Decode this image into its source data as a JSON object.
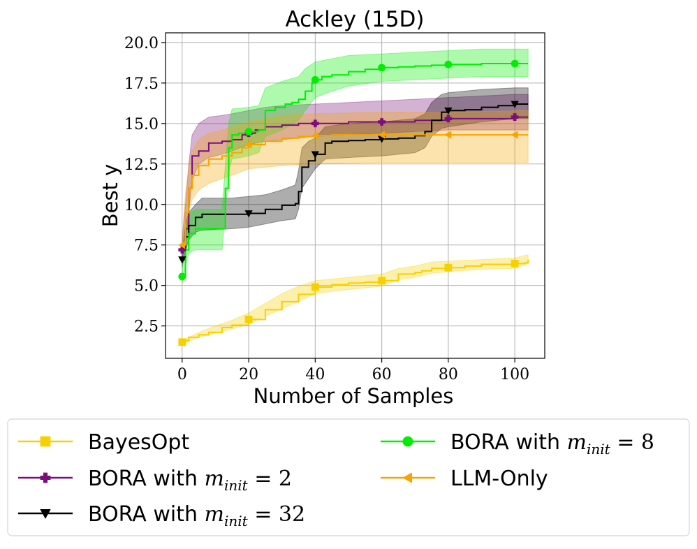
{
  "chart_data": {
    "type": "line",
    "title": "Ackley (15D)",
    "xlabel": "Number of Samples",
    "ylabel": "Best y",
    "xlim": [
      -5,
      109
    ],
    "ylim": [
      0.5,
      20.6
    ],
    "xticks": [
      0,
      20,
      40,
      60,
      80,
      100
    ],
    "yticks": [
      2.5,
      5.0,
      7.5,
      10.0,
      12.5,
      15.0,
      17.5,
      20.0
    ],
    "xtick_labels": [
      "0",
      "20",
      "40",
      "60",
      "80",
      "100"
    ],
    "ytick_labels": [
      "2.5",
      "5.0",
      "7.5",
      "10.0",
      "12.5",
      "15.0",
      "17.5",
      "20.0"
    ],
    "grid": true,
    "legend_position": "bottom",
    "series": [
      {
        "name": "BayesOpt",
        "legend_main": "BayesOpt",
        "legend_math": "",
        "color": "#f7d000",
        "marker": "square",
        "mean": [
          [
            0,
            1.5
          ],
          [
            1,
            1.6
          ],
          [
            2,
            1.8
          ],
          [
            5,
            1.95
          ],
          [
            8,
            2.1
          ],
          [
            12,
            2.4
          ],
          [
            15,
            2.55
          ],
          [
            20,
            2.9
          ],
          [
            25,
            3.5
          ],
          [
            30,
            4.0
          ],
          [
            35,
            4.45
          ],
          [
            40,
            4.9
          ],
          [
            45,
            5.05
          ],
          [
            50,
            5.15
          ],
          [
            55,
            5.2
          ],
          [
            60,
            5.3
          ],
          [
            65,
            5.7
          ],
          [
            70,
            5.8
          ],
          [
            72,
            5.9
          ],
          [
            75,
            6.05
          ],
          [
            80,
            6.1
          ],
          [
            85,
            6.2
          ],
          [
            90,
            6.3
          ],
          [
            100,
            6.35
          ],
          [
            103,
            6.4
          ],
          [
            104,
            6.6
          ]
        ],
        "band": [
          [
            0,
            1.35,
            1.6
          ],
          [
            5,
            1.8,
            2.1
          ],
          [
            10,
            2.05,
            2.5
          ],
          [
            15,
            2.3,
            2.85
          ],
          [
            20,
            2.6,
            3.3
          ],
          [
            25,
            3.1,
            3.9
          ],
          [
            30,
            3.55,
            4.5
          ],
          [
            35,
            4.0,
            4.95
          ],
          [
            40,
            4.5,
            5.3
          ],
          [
            50,
            4.75,
            5.5
          ],
          [
            60,
            4.95,
            5.7
          ],
          [
            65,
            5.35,
            6.05
          ],
          [
            70,
            5.5,
            6.2
          ],
          [
            75,
            5.75,
            6.45
          ],
          [
            80,
            5.85,
            6.5
          ],
          [
            90,
            6.0,
            6.6
          ],
          [
            100,
            6.05,
            6.7
          ],
          [
            104,
            6.35,
            6.9
          ]
        ],
        "markers": [
          [
            0,
            1.5
          ],
          [
            20,
            2.9
          ],
          [
            40,
            4.9
          ],
          [
            60,
            5.3
          ],
          [
            80,
            6.1
          ],
          [
            100,
            6.35
          ]
        ]
      },
      {
        "name": "BORA with m_init = 2",
        "legend_main": "BORA with ",
        "legend_math": "m_init = 2",
        "color": "#7a0f7a",
        "marker": "plus",
        "mean": [
          [
            0,
            7.2
          ],
          [
            1,
            8.5
          ],
          [
            2,
            11.0
          ],
          [
            3,
            13.0
          ],
          [
            5,
            13.3
          ],
          [
            8,
            13.8
          ],
          [
            12,
            13.9
          ],
          [
            15,
            14.0
          ],
          [
            18,
            14.3
          ],
          [
            20,
            14.4
          ],
          [
            22,
            14.6
          ],
          [
            25,
            14.8
          ],
          [
            30,
            14.9
          ],
          [
            35,
            15.0
          ],
          [
            40,
            15.0
          ],
          [
            50,
            15.1
          ],
          [
            60,
            15.1
          ],
          [
            70,
            15.2
          ],
          [
            80,
            15.3
          ],
          [
            90,
            15.3
          ],
          [
            100,
            15.4
          ],
          [
            104,
            15.4
          ]
        ],
        "band": [
          [
            0,
            6.6,
            7.8
          ],
          [
            1,
            7.4,
            10.0
          ],
          [
            2,
            9.5,
            12.5
          ],
          [
            3,
            11.5,
            14.3
          ],
          [
            5,
            12.5,
            15.0
          ],
          [
            8,
            12.9,
            15.4
          ],
          [
            12,
            13.1,
            15.5
          ],
          [
            15,
            13.3,
            15.6
          ],
          [
            20,
            13.7,
            15.8
          ],
          [
            25,
            13.9,
            16.0
          ],
          [
            30,
            14.0,
            16.1
          ],
          [
            40,
            14.2,
            16.2
          ],
          [
            50,
            14.3,
            16.3
          ],
          [
            60,
            14.4,
            16.4
          ],
          [
            70,
            14.5,
            16.5
          ],
          [
            80,
            14.6,
            16.6
          ],
          [
            90,
            14.6,
            16.7
          ],
          [
            100,
            14.6,
            16.8
          ],
          [
            104,
            14.6,
            16.8
          ]
        ],
        "markers": [
          [
            0,
            7.2
          ],
          [
            20,
            14.4
          ],
          [
            40,
            15.0
          ],
          [
            60,
            15.1
          ],
          [
            80,
            15.3
          ],
          [
            100,
            15.4
          ]
        ]
      },
      {
        "name": "BORA with m_init = 32",
        "legend_main": "BORA with ",
        "legend_math": "m_init = 32",
        "color": "#000000",
        "marker": "triangle-down",
        "mean": [
          [
            0,
            6.6
          ],
          [
            1,
            8.0
          ],
          [
            2,
            8.7
          ],
          [
            4,
            9.2
          ],
          [
            6,
            9.4
          ],
          [
            10,
            9.4
          ],
          [
            15,
            9.4
          ],
          [
            20,
            9.45
          ],
          [
            25,
            9.7
          ],
          [
            30,
            9.95
          ],
          [
            34,
            10.05
          ],
          [
            35,
            10.8
          ],
          [
            36,
            12.3
          ],
          [
            38,
            12.7
          ],
          [
            40,
            13.1
          ],
          [
            43,
            13.8
          ],
          [
            45,
            13.9
          ],
          [
            50,
            13.95
          ],
          [
            55,
            14.0
          ],
          [
            60,
            14.05
          ],
          [
            65,
            14.1
          ],
          [
            70,
            14.25
          ],
          [
            73,
            14.5
          ],
          [
            75,
            15.2
          ],
          [
            78,
            15.7
          ],
          [
            80,
            15.8
          ],
          [
            85,
            15.85
          ],
          [
            90,
            16.0
          ],
          [
            95,
            16.1
          ],
          [
            100,
            16.2
          ],
          [
            104,
            16.2
          ]
        ],
        "band": [
          [
            0,
            6.1,
            7.1
          ],
          [
            1,
            7.2,
            8.8
          ],
          [
            2,
            7.8,
            9.5
          ],
          [
            4,
            8.3,
            10.0
          ],
          [
            6,
            8.4,
            10.4
          ],
          [
            15,
            8.5,
            10.4
          ],
          [
            20,
            8.6,
            10.5
          ],
          [
            25,
            8.8,
            10.6
          ],
          [
            30,
            9.0,
            10.9
          ],
          [
            34,
            9.1,
            11.2
          ],
          [
            35,
            9.7,
            12.1
          ],
          [
            36,
            11.0,
            13.5
          ],
          [
            38,
            11.6,
            13.9
          ],
          [
            40,
            12.2,
            14.1
          ],
          [
            43,
            12.8,
            14.8
          ],
          [
            50,
            12.9,
            15.0
          ],
          [
            60,
            13.0,
            15.1
          ],
          [
            70,
            13.2,
            15.3
          ],
          [
            73,
            13.5,
            15.6
          ],
          [
            75,
            14.2,
            16.3
          ],
          [
            78,
            14.7,
            16.8
          ],
          [
            80,
            14.8,
            16.9
          ],
          [
            90,
            15.1,
            17.1
          ],
          [
            100,
            15.3,
            17.2
          ],
          [
            104,
            15.3,
            17.2
          ]
        ],
        "markers": [
          [
            0,
            6.6
          ],
          [
            20,
            9.45
          ],
          [
            40,
            13.1
          ],
          [
            60,
            14.05
          ],
          [
            80,
            15.8
          ],
          [
            100,
            16.2
          ]
        ]
      },
      {
        "name": "BORA with m_init = 8",
        "legend_main": "BORA with ",
        "legend_math": "m_init = 8",
        "color": "#00ee00",
        "marker": "circle",
        "mean": [
          [
            0,
            5.55
          ],
          [
            1,
            7.2
          ],
          [
            2,
            8.2
          ],
          [
            4,
            8.5
          ],
          [
            8,
            8.5
          ],
          [
            12,
            8.5
          ],
          [
            13,
            11.0
          ],
          [
            14,
            13.5
          ],
          [
            15,
            14.3
          ],
          [
            17,
            14.4
          ],
          [
            20,
            14.5
          ],
          [
            23,
            14.6
          ],
          [
            25,
            15.8
          ],
          [
            28,
            16.0
          ],
          [
            31,
            16.2
          ],
          [
            33,
            16.3
          ],
          [
            35,
            16.5
          ],
          [
            37,
            17.0
          ],
          [
            39,
            17.5
          ],
          [
            40,
            17.7
          ],
          [
            42,
            17.9
          ],
          [
            45,
            18.0
          ],
          [
            50,
            18.2
          ],
          [
            55,
            18.35
          ],
          [
            60,
            18.45
          ],
          [
            65,
            18.5
          ],
          [
            70,
            18.55
          ],
          [
            75,
            18.6
          ],
          [
            80,
            18.65
          ],
          [
            90,
            18.7
          ],
          [
            100,
            18.7
          ],
          [
            104,
            18.7
          ]
        ],
        "band": [
          [
            0,
            5.1,
            6.1
          ],
          [
            1,
            6.2,
            8.3
          ],
          [
            2,
            7.0,
            9.4
          ],
          [
            4,
            7.2,
            9.7
          ],
          [
            12,
            7.2,
            9.7
          ],
          [
            13,
            9.5,
            12.5
          ],
          [
            14,
            12.0,
            15.0
          ],
          [
            15,
            12.8,
            15.9
          ],
          [
            20,
            13.0,
            16.0
          ],
          [
            23,
            13.2,
            16.1
          ],
          [
            25,
            14.2,
            17.2
          ],
          [
            30,
            14.6,
            17.6
          ],
          [
            35,
            15.2,
            17.9
          ],
          [
            37,
            15.8,
            18.4
          ],
          [
            40,
            16.6,
            18.8
          ],
          [
            45,
            17.0,
            19.0
          ],
          [
            50,
            17.3,
            19.2
          ],
          [
            60,
            17.6,
            19.3
          ],
          [
            70,
            17.7,
            19.4
          ],
          [
            80,
            17.8,
            19.5
          ],
          [
            90,
            17.9,
            19.6
          ],
          [
            104,
            17.9,
            19.6
          ]
        ],
        "markers": [
          [
            0,
            5.55
          ],
          [
            20,
            14.5
          ],
          [
            40,
            17.7
          ],
          [
            60,
            18.45
          ],
          [
            80,
            18.65
          ],
          [
            100,
            18.7
          ]
        ]
      },
      {
        "name": "LLM-Only",
        "legend_main": "LLM-Only",
        "legend_math": "",
        "color": "#f6a500",
        "marker": "triangle-left",
        "mean": [
          [
            0,
            7.5
          ],
          [
            1,
            9.5
          ],
          [
            2,
            11.0
          ],
          [
            3,
            11.8
          ],
          [
            5,
            12.4
          ],
          [
            8,
            12.8
          ],
          [
            12,
            13.0
          ],
          [
            15,
            13.2
          ],
          [
            18,
            13.5
          ],
          [
            20,
            13.7
          ],
          [
            25,
            13.9
          ],
          [
            30,
            14.1
          ],
          [
            35,
            14.2
          ],
          [
            40,
            14.25
          ],
          [
            45,
            14.3
          ],
          [
            60,
            14.3
          ],
          [
            80,
            14.3
          ],
          [
            100,
            14.3
          ],
          [
            104,
            14.3
          ]
        ],
        "band": [
          [
            0,
            7.0,
            8.0
          ],
          [
            1,
            8.3,
            10.7
          ],
          [
            2,
            9.6,
            12.3
          ],
          [
            3,
            10.3,
            13.3
          ],
          [
            5,
            10.9,
            14.0
          ],
          [
            8,
            11.3,
            14.4
          ],
          [
            12,
            11.6,
            14.6
          ],
          [
            15,
            11.8,
            14.8
          ],
          [
            20,
            12.2,
            15.1
          ],
          [
            25,
            12.3,
            15.3
          ],
          [
            30,
            12.4,
            15.5
          ],
          [
            40,
            12.5,
            15.6
          ],
          [
            60,
            12.6,
            15.7
          ],
          [
            80,
            12.6,
            15.7
          ],
          [
            104,
            12.6,
            15.8
          ]
        ],
        "markers": [
          [
            0,
            7.5
          ],
          [
            20,
            13.7
          ],
          [
            40,
            14.25
          ],
          [
            60,
            14.3
          ],
          [
            80,
            14.3
          ],
          [
            100,
            14.3
          ]
        ]
      }
    ]
  }
}
